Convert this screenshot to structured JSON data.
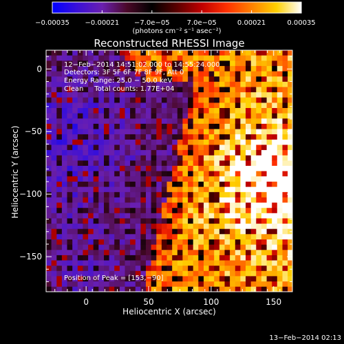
{
  "chart_data": {
    "type": "heatmap",
    "title": "Reconstructed RHESSI Image",
    "xlabel": "Heliocentric X (arcsec)",
    "ylabel": "Heliocentric Y (arcsec)",
    "xlim": [
      -32,
      165
    ],
    "ylim": [
      -178,
      15
    ],
    "x_ticks": [
      0,
      50,
      100,
      150
    ],
    "y_ticks": [
      0,
      -50,
      -100,
      -150
    ],
    "x_tick_labels": [
      "0",
      "50",
      "100",
      "150"
    ],
    "y_tick_labels": [
      "0",
      "−50",
      "−100",
      "−150"
    ],
    "info_lines": [
      "12−Feb−2014 14:51:02.000 to 14:55:24.000",
      "Detectors: 3F 5F 6F 7F 8F 9F, Att 0",
      "Energy Range: 25.0 − 50.0 keV",
      "Clean     Total counts: 1.77E+04"
    ],
    "peak_label": "Position of Peak = [153,−90]",
    "peak_position": [
      153,
      -90
    ],
    "colorbar": {
      "min": -0.00035,
      "max": 0.00035,
      "tick_values": [
        -0.00035,
        -0.00021,
        -7e-05,
        7e-05,
        0.00021,
        0.00035
      ],
      "tick_labels": [
        "−0.00035",
        "−0.00021",
        "−7.0e−05",
        "7.0e−05",
        "0.00021",
        "0.00035"
      ],
      "unit_label": "(photons cm⁻² s⁻¹ asec⁻²)",
      "colors": [
        "#0000ff",
        "#3a10d8",
        "#6a1fb0",
        "#4a0828",
        "#000000",
        "#5a0000",
        "#c00000",
        "#ff3000",
        "#ff8000",
        "#ffd000",
        "#ffffff"
      ]
    },
    "timestamp": "13−Feb−2014 02:13",
    "grid": false
  }
}
